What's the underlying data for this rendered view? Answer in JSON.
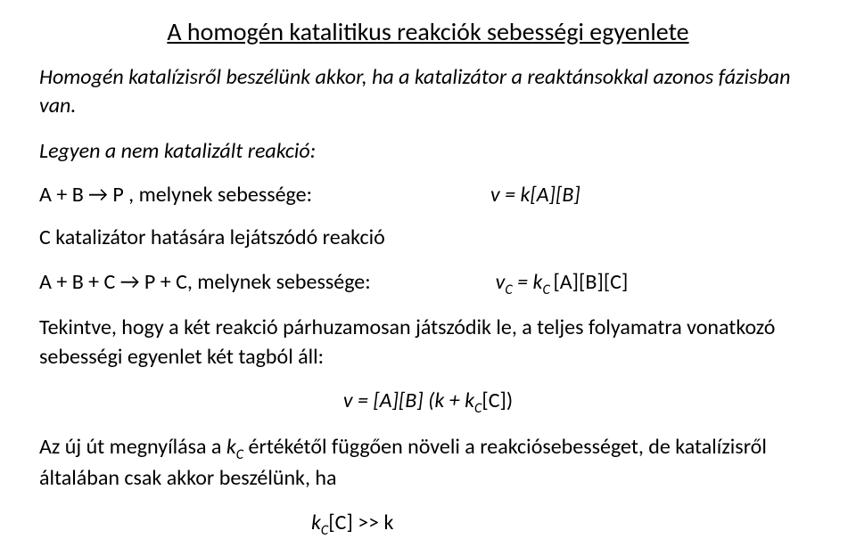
{
  "title": "A homogén katalitikus reakciók sebességi egyenlete",
  "intro": "Homogén katalízisről beszélünk akkor, ha a katalizátor a reaktánsokkal azonos fázisban van.",
  "nonCatalyzed": "Legyen a nem katalizált reakció:",
  "reaction1": {
    "left": "A + B → P , melynek sebessége:",
    "right": "v = k[A][B]"
  },
  "catalystLine": "C katalizátor hatására lejátszódó reakció",
  "reaction2": {
    "left": "A + B + C → P + C, melynek sebessége:",
    "right_prefix": "v",
    "right_sub1": "C",
    "right_mid": " = k",
    "right_sub2": "C ",
    "right_suffix": "[A][B][C]"
  },
  "consider": "Tekintve, hogy a két reakció párhuzamosan játszódik le, a teljes folyamatra vonatkozó sebességi egyenlet két tagból áll:",
  "combined": {
    "prefix": "v = [A][B] (k + k",
    "sub": "C",
    "suffix": "[C])"
  },
  "conclusion": {
    "prefix": "Az új út megnyílása a ",
    "k": "k",
    "sub": "C",
    "rest": " értékétől függően növeli a reakciósebességet, de katalízisről általában csak akkor beszélünk, ha"
  },
  "finalRelation": {
    "k1": "k",
    "sub": "C",
    "mid": "[C] >> k"
  }
}
